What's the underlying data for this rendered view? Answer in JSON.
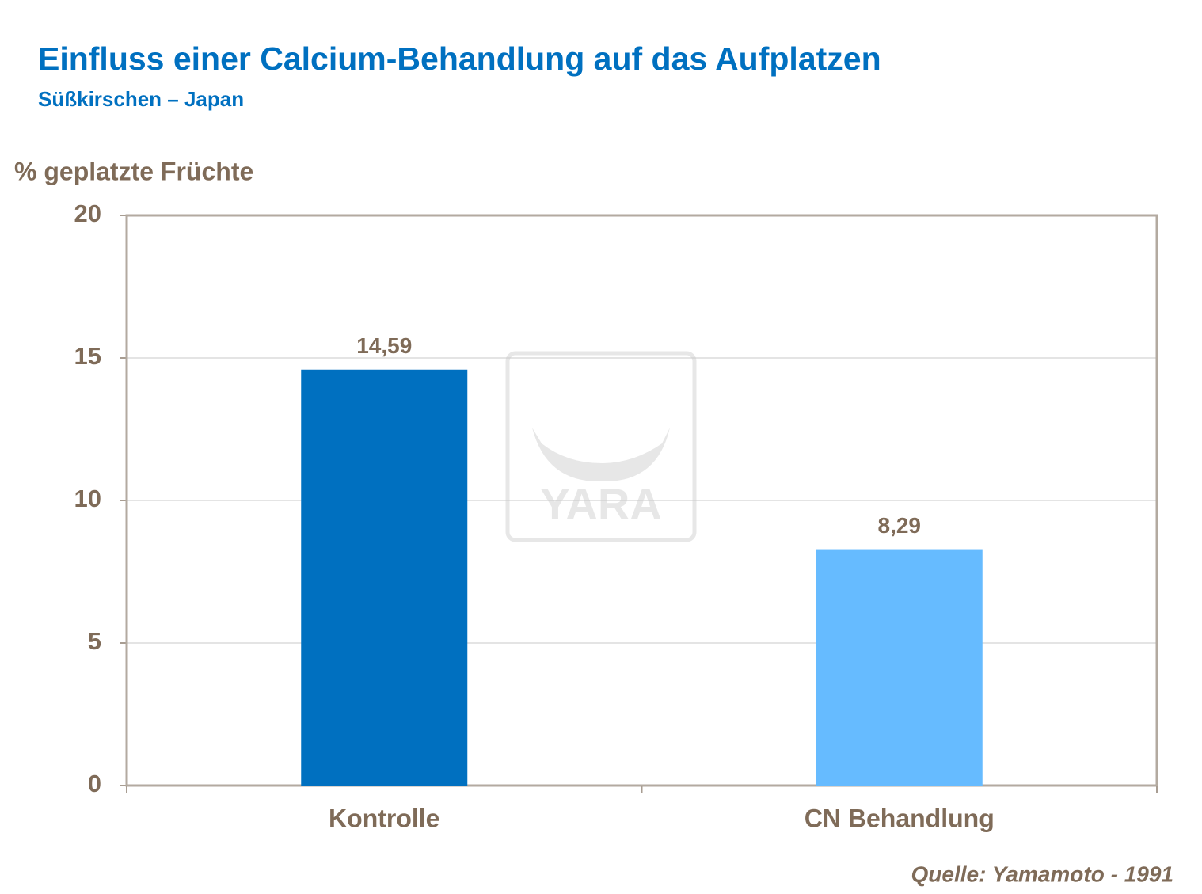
{
  "chart_data": {
    "type": "bar",
    "title": "Einfluss einer Calcium-Behandlung auf das Aufplatzen",
    "subtitle": "Süßkirschen – Japan",
    "y_label": "% geplatzte Früchte",
    "categories": [
      "Kontrolle",
      "CN Behandlung"
    ],
    "values": [
      14.59,
      8.29
    ],
    "value_labels": [
      "14,59",
      "8,29"
    ],
    "colors": [
      "#0070c0",
      "#66bbff"
    ],
    "ylim": [
      0,
      20
    ],
    "yticks": [
      0,
      5,
      10,
      15,
      20
    ],
    "grid": true,
    "source": "Quelle:  Yamamoto -  1991",
    "watermark": "YARA"
  }
}
